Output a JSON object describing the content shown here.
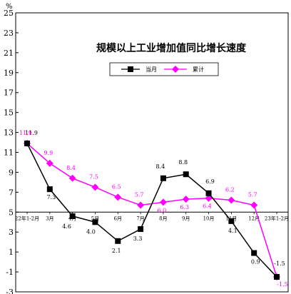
{
  "chart_data": {
    "type": "line",
    "title": "规模以上工业增加值同比增长速度",
    "unit": "%",
    "ylim": [
      -3,
      25
    ],
    "yticks": [
      -3,
      -1,
      1,
      3,
      5,
      7,
      9,
      11,
      13,
      15,
      17,
      19,
      21,
      23,
      25
    ],
    "baseline": 5,
    "categories": [
      "22年1-2月",
      "3月",
      "4月",
      "5月",
      "6月",
      "7月",
      "8月",
      "9月",
      "10月",
      "11月",
      "12月",
      "23年1-2月"
    ],
    "legend_position": "top-right",
    "series": [
      {
        "name": "当月",
        "color": "#000000",
        "marker": "square",
        "values": [
          11.9,
          7.3,
          4.6,
          4.0,
          2.1,
          3.3,
          8.4,
          8.8,
          6.9,
          4.1,
          0.9,
          -1.5
        ],
        "labels": [
          "11.9",
          "7.3",
          "4.6",
          "4.0",
          "2.1",
          "3.3",
          "8.4",
          "8.8",
          "6.9",
          "4.1",
          "0.9",
          "-1.5"
        ]
      },
      {
        "name": "累计",
        "color": "#ff00ff",
        "marker": "diamond",
        "values": [
          11.9,
          9.9,
          8.4,
          7.5,
          6.5,
          5.7,
          6.0,
          6.3,
          6.4,
          6.2,
          5.7,
          -1.5
        ],
        "labels": [
          "11.9",
          "9.9",
          "8.4",
          "7.5",
          "6.5",
          "5.7",
          "6.0",
          "6.3",
          "6.4",
          "6.2",
          "5.7",
          "-1.5"
        ]
      }
    ]
  }
}
